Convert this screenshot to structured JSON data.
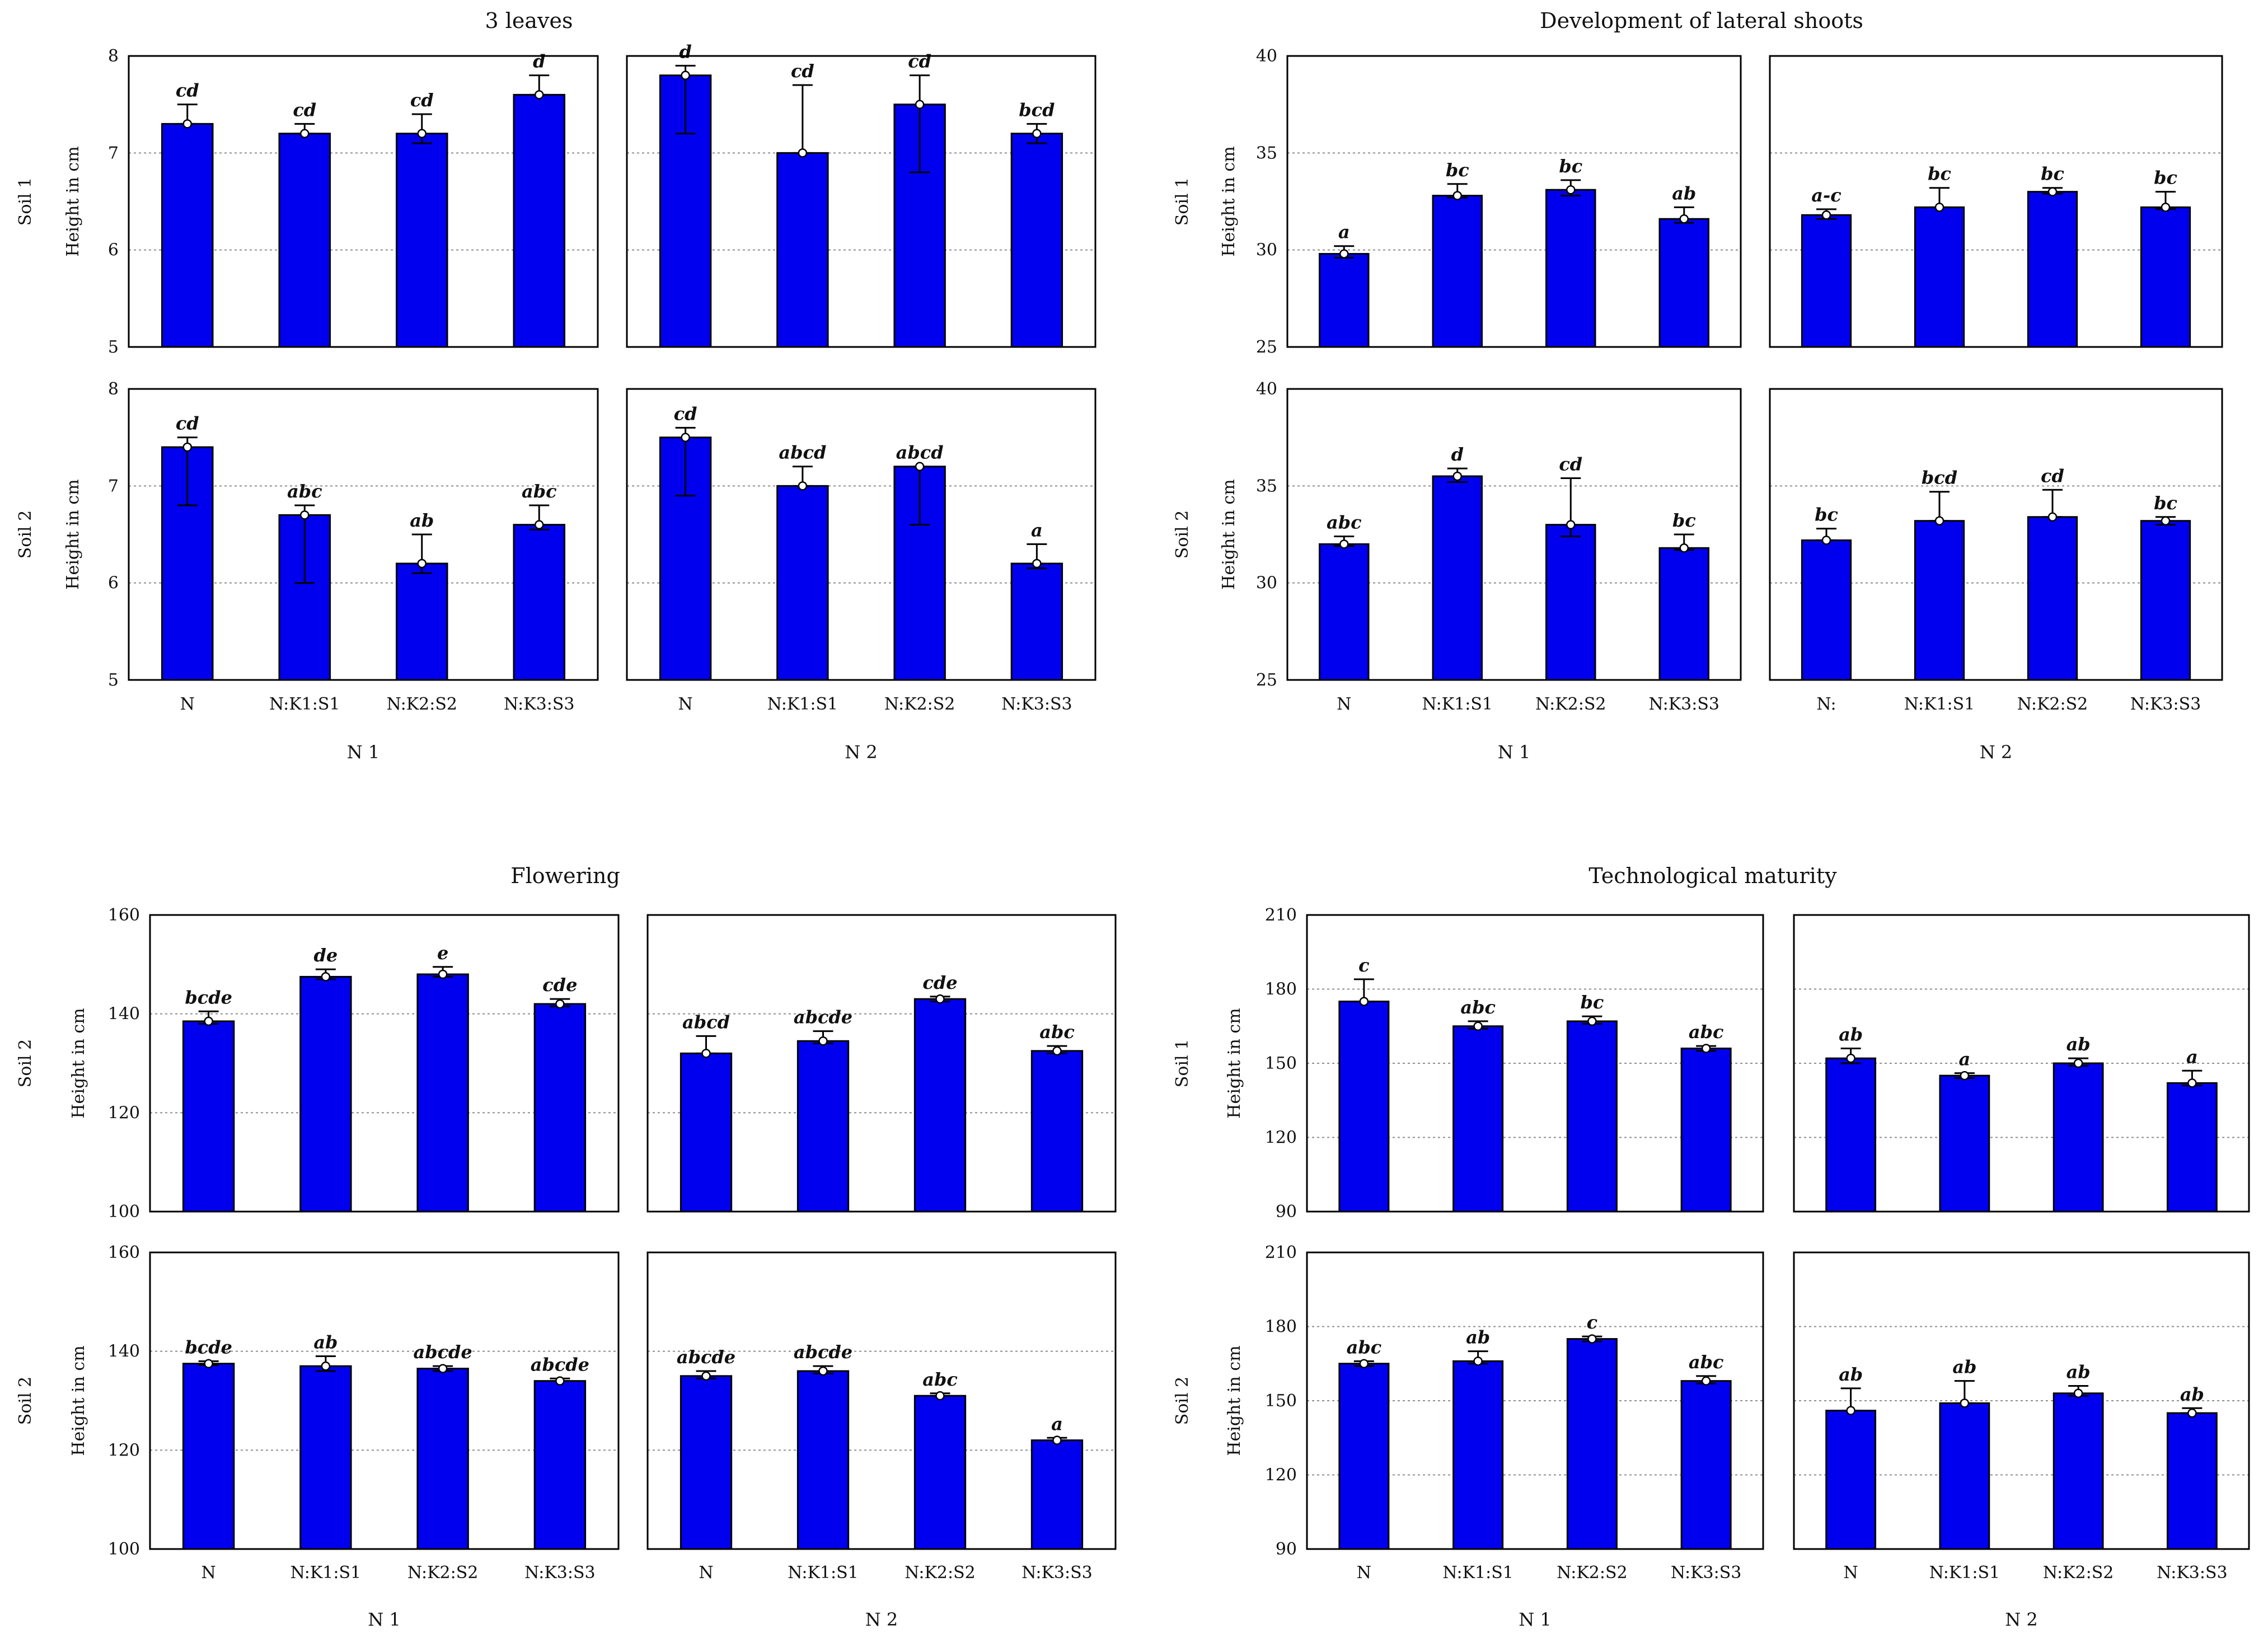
{
  "colors": {
    "bar": "#0000ee",
    "bar_edge": "#000000",
    "grid": "#8c8c8c",
    "frame": "#000000"
  },
  "chart_data": [
    {
      "type": "bar",
      "title": "3 leaves",
      "ylabel": "Height in cm",
      "ylim": [
        5,
        8
      ],
      "yticks": [
        "5",
        "6",
        "7",
        "8"
      ],
      "row_labels": [
        "Soil 1",
        "Soil 2"
      ],
      "group_labels": [
        "N 1",
        "N 2"
      ],
      "categories": [
        [
          "N",
          "N:K1:S1",
          "N:K2:S2",
          "N:K3:S3"
        ],
        [
          "N",
          "N:K1:S1",
          "N:K2:S2",
          "N:K3:S3"
        ]
      ],
      "panels": [
        {
          "row": 0,
          "group": 0,
          "values": [
            7.3,
            7.2,
            7.2,
            7.6
          ],
          "err_low": [
            7.3,
            7.2,
            7.1,
            7.6
          ],
          "err_high": [
            7.5,
            7.3,
            7.4,
            7.8
          ],
          "labels": [
            "cd",
            "cd",
            "cd",
            "d"
          ]
        },
        {
          "row": 0,
          "group": 1,
          "values": [
            7.8,
            7.0,
            7.5,
            7.2
          ],
          "err_low": [
            7.2,
            7.0,
            6.8,
            7.1
          ],
          "err_high": [
            7.9,
            7.7,
            7.8,
            7.3
          ],
          "labels": [
            "d",
            "cd",
            "cd",
            "bcd"
          ]
        },
        {
          "row": 1,
          "group": 0,
          "values": [
            7.4,
            6.7,
            6.2,
            6.6
          ],
          "err_low": [
            6.8,
            6.0,
            6.1,
            6.55
          ],
          "err_high": [
            7.5,
            6.8,
            6.5,
            6.8
          ],
          "labels": [
            "cd",
            "abc",
            "ab",
            "abc"
          ]
        },
        {
          "row": 1,
          "group": 1,
          "values": [
            7.5,
            7.0,
            7.2,
            6.2
          ],
          "err_low": [
            6.9,
            7.0,
            6.6,
            6.15
          ],
          "err_high": [
            7.6,
            7.2,
            7.2,
            6.4
          ],
          "labels": [
            "cd",
            "abcd",
            "abcd",
            "a"
          ]
        }
      ]
    },
    {
      "type": "bar",
      "title": "Development of lateral shoots",
      "ylabel": "Height in cm",
      "ylim": [
        25,
        40
      ],
      "yticks": [
        "25",
        "30",
        "35",
        "40"
      ],
      "row_labels": [
        "Soil 1",
        "Soil 2"
      ],
      "group_labels": [
        "N 1",
        "N 2"
      ],
      "categories": [
        [
          "N",
          "N:K1:S1",
          "N:K2:S2",
          "N:K3:S3"
        ],
        [
          "N:",
          "N:K1:S1",
          "N:K2:S2",
          "N:K3:S3"
        ]
      ],
      "panels": [
        {
          "row": 0,
          "group": 0,
          "values": [
            29.8,
            32.8,
            33.1,
            31.6
          ],
          "err_low": [
            29.6,
            32.7,
            32.8,
            31.4
          ],
          "err_high": [
            30.2,
            33.4,
            33.6,
            32.2
          ],
          "labels": [
            "a",
            "bc",
            "bc",
            "ab"
          ]
        },
        {
          "row": 0,
          "group": 1,
          "values": [
            31.8,
            32.2,
            33.0,
            32.2
          ],
          "err_low": [
            31.6,
            32.2,
            32.9,
            32.1
          ],
          "err_high": [
            32.1,
            33.2,
            33.2,
            33.0
          ],
          "labels": [
            "a-c",
            "bc",
            "bc",
            "bc"
          ]
        },
        {
          "row": 1,
          "group": 0,
          "values": [
            32.0,
            35.5,
            33.0,
            31.8
          ],
          "err_low": [
            31.9,
            35.2,
            32.4,
            31.7
          ],
          "err_high": [
            32.4,
            35.9,
            35.4,
            32.5
          ],
          "labels": [
            "abc",
            "d",
            "cd",
            "bc"
          ]
        },
        {
          "row": 1,
          "group": 1,
          "values": [
            32.2,
            33.2,
            33.4,
            33.2
          ],
          "err_low": [
            32.2,
            33.2,
            33.4,
            33.0
          ],
          "err_high": [
            32.8,
            34.7,
            34.8,
            33.4
          ],
          "labels": [
            "bc",
            "bcd",
            "cd",
            "bc"
          ]
        }
      ]
    },
    {
      "type": "bar",
      "title": "Flowering",
      "ylabel": "Height in cm",
      "ylim": [
        100,
        160
      ],
      "yticks": [
        "100",
        "120",
        "140",
        "160"
      ],
      "row_labels": [
        "Soil 2",
        "Soil 2"
      ],
      "group_labels": [
        "N 1",
        "N 2"
      ],
      "categories": [
        [
          "N",
          "N:K1:S1",
          "N:K2:S2",
          "N:K3:S3"
        ],
        [
          "N",
          "N:K1:S1",
          "N:K2:S2",
          "N:K3:S3"
        ]
      ],
      "panels": [
        {
          "row": 0,
          "group": 0,
          "values": [
            138.5,
            147.5,
            148.0,
            142.0
          ],
          "err_low": [
            138.0,
            147.0,
            147.5,
            141.5
          ],
          "err_high": [
            140.5,
            149.0,
            149.5,
            143.0
          ],
          "labels": [
            "bcde",
            "de",
            "e",
            "cde"
          ]
        },
        {
          "row": 0,
          "group": 1,
          "values": [
            132.0,
            134.5,
            143.0,
            132.5
          ],
          "err_low": [
            132.0,
            134.0,
            142.5,
            132.0
          ],
          "err_high": [
            135.5,
            136.5,
            143.5,
            133.5
          ],
          "labels": [
            "abcd",
            "abcde",
            "cde",
            "abc"
          ]
        },
        {
          "row": 1,
          "group": 0,
          "values": [
            137.5,
            137.0,
            136.5,
            134.0
          ],
          "err_low": [
            137.2,
            136.0,
            136.0,
            134.0
          ],
          "err_high": [
            138.0,
            139.0,
            137.0,
            134.5
          ],
          "labels": [
            "bcde",
            "ab",
            "abcde",
            "abcde"
          ]
        },
        {
          "row": 1,
          "group": 1,
          "values": [
            135.0,
            136.0,
            131.0,
            122.0
          ],
          "err_low": [
            134.5,
            135.5,
            131.0,
            122.0
          ],
          "err_high": [
            136.0,
            137.0,
            131.5,
            122.5
          ],
          "labels": [
            "abcde",
            "abcde",
            "abc",
            "a"
          ]
        }
      ]
    },
    {
      "type": "bar",
      "title": "Technological maturity",
      "ylabel": "Height in cm",
      "ylim": [
        90,
        210
      ],
      "yticks": [
        "90",
        "120",
        "150",
        "180",
        "210"
      ],
      "row_labels": [
        "Soil 1",
        "Soil 2"
      ],
      "group_labels": [
        "N 1",
        "N 2"
      ],
      "categories": [
        [
          "N",
          "N:K1:S1",
          "N:K2:S2",
          "N:K3:S3"
        ],
        [
          "N",
          "N:K1:S1",
          "N:K2:S2",
          "N:K3:S3"
        ]
      ],
      "panels": [
        {
          "row": 0,
          "group": 0,
          "values": [
            175,
            165,
            167,
            156
          ],
          "err_low": [
            175,
            164,
            166,
            155
          ],
          "err_high": [
            184,
            167,
            169,
            157
          ],
          "labels": [
            "c",
            "abc",
            "bc",
            "abc"
          ]
        },
        {
          "row": 0,
          "group": 1,
          "values": [
            152,
            145,
            150,
            142
          ],
          "err_low": [
            150,
            144,
            149,
            141
          ],
          "err_high": [
            156,
            146,
            152,
            147
          ],
          "labels": [
            "ab",
            "a",
            "ab",
            "a"
          ]
        },
        {
          "row": 1,
          "group": 0,
          "values": [
            165,
            166,
            175,
            158
          ],
          "err_low": [
            164,
            165,
            174,
            157
          ],
          "err_high": [
            166,
            170,
            176,
            160
          ],
          "labels": [
            "abc",
            "ab",
            "c",
            "abc"
          ]
        },
        {
          "row": 1,
          "group": 1,
          "values": [
            146,
            149,
            153,
            145
          ],
          "err_low": [
            146,
            149,
            152,
            145
          ],
          "err_high": [
            155,
            158,
            156,
            147
          ],
          "labels": [
            "ab",
            "ab",
            "ab",
            "ab"
          ]
        }
      ]
    }
  ]
}
